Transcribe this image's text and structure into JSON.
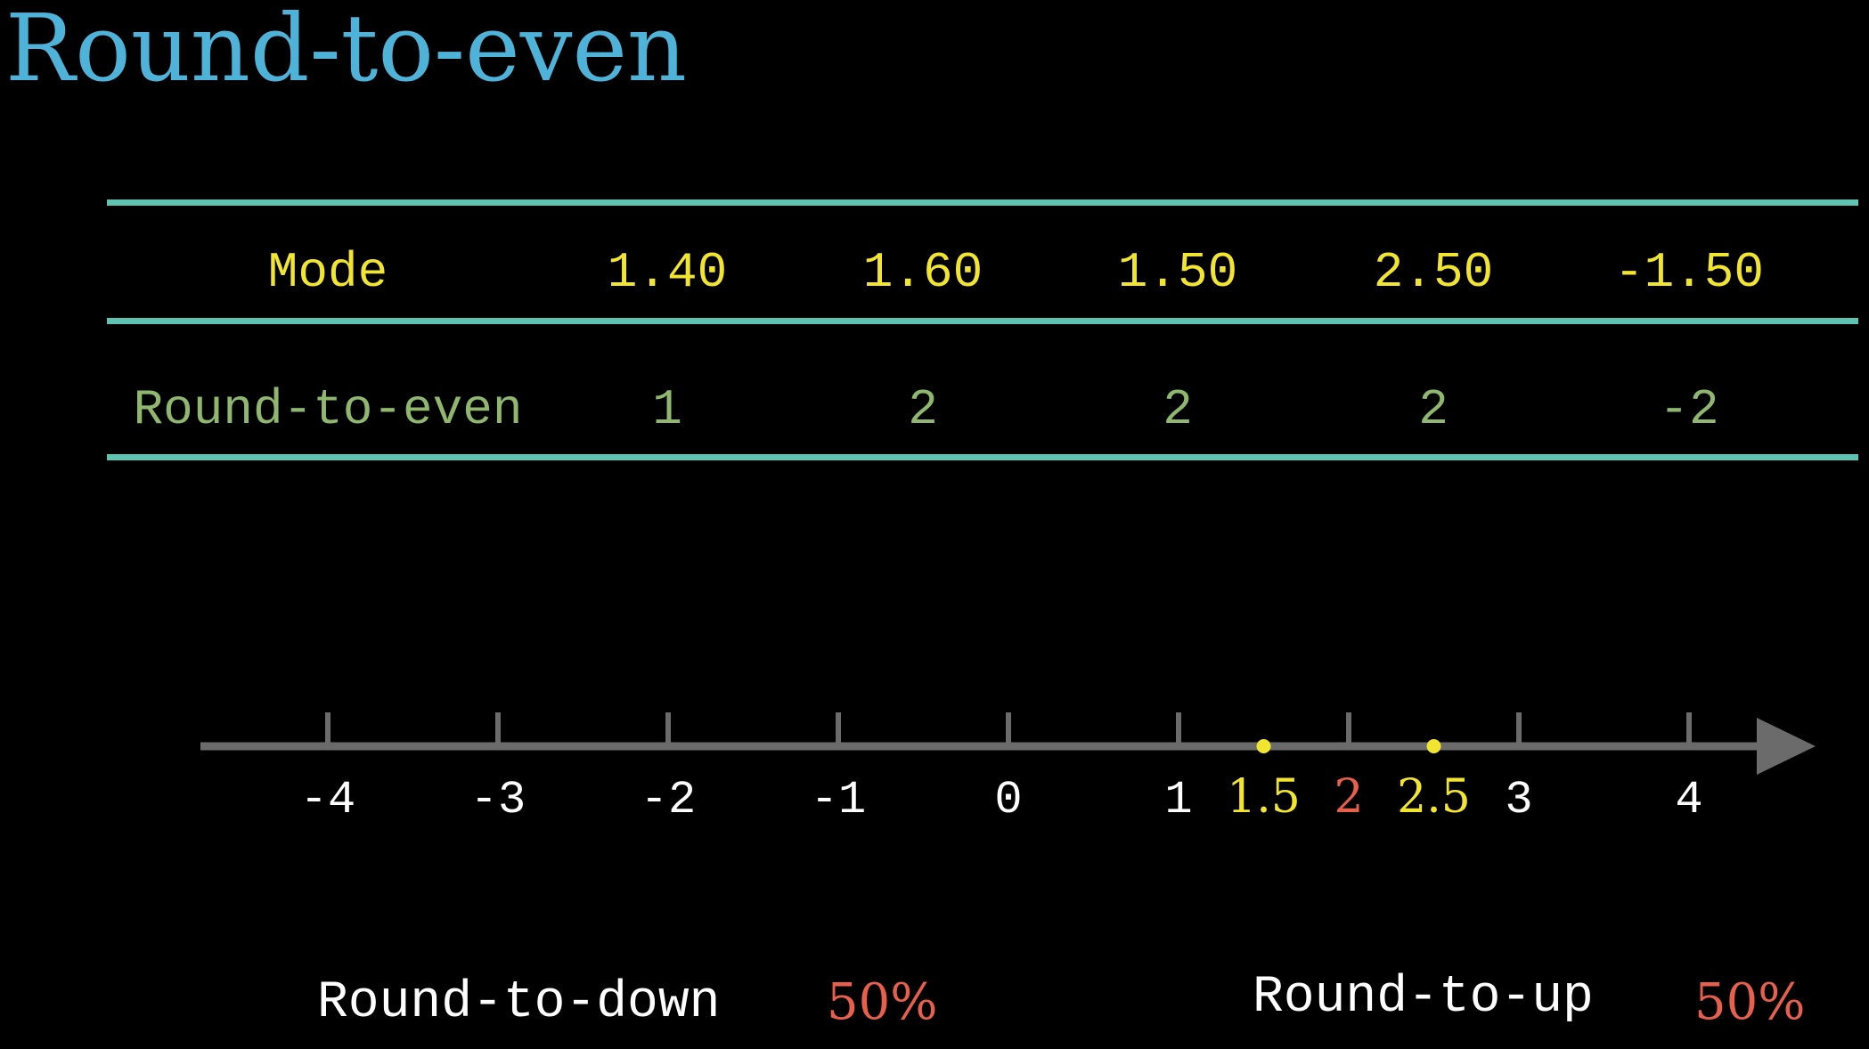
{
  "title": "Round-to-even",
  "colors": {
    "title": "#4fb3d9",
    "rule": "#5ec3b0",
    "header": "#f2e530",
    "row": "#8fb86e",
    "axis": "#6b6b6b",
    "tick_label": "#ffffff",
    "highlight_point": "#f2e530",
    "highlight_red": "#e8604c",
    "footer_text": "#ffffff"
  },
  "table": {
    "header": [
      "Mode",
      "1.40",
      "1.60",
      "1.50",
      "2.50",
      "-1.50"
    ],
    "rows": [
      {
        "cells": [
          "Round-to-even",
          "1",
          "2",
          "2",
          "2",
          "-2"
        ]
      }
    ]
  },
  "number_line": {
    "ticks": [
      -4,
      -3,
      -2,
      -1,
      0,
      1,
      2,
      3,
      4
    ],
    "tick_labels": [
      "-4",
      "-3",
      "-2",
      "-1",
      "0",
      "1",
      "2",
      "3",
      "4"
    ],
    "points": [
      {
        "value": 1.5,
        "label": "1.5"
      },
      {
        "value": 2.5,
        "label": "2.5"
      }
    ],
    "highlight_tick": 2
  },
  "footer": {
    "left": {
      "label": "Round-to-down",
      "percent": "50%"
    },
    "right": {
      "label": "Round-to-up",
      "percent": "50%"
    }
  }
}
